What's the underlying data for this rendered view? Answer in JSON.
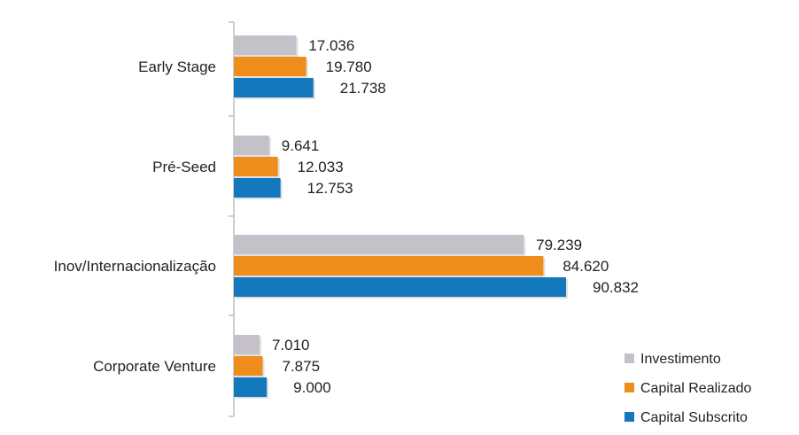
{
  "chart_data": {
    "type": "bar",
    "orientation": "horizontal",
    "title": "",
    "xlabel": "",
    "ylabel": "",
    "categories": [
      "Early Stage",
      "Pré-Seed",
      "Inov/Internacionalização",
      "Corporate Venture"
    ],
    "series": [
      {
        "name": "Investimento",
        "color": "#c4c1c9",
        "values": [
          17036,
          9641,
          79239,
          7010
        ],
        "labels": [
          "17.036",
          "9.641",
          "79.239",
          "7.010"
        ]
      },
      {
        "name": "Capital Realizado",
        "color": "#ef8d1d",
        "values": [
          19780,
          12033,
          84620,
          7875
        ],
        "labels": [
          "19.780",
          "12.033",
          "84.620",
          "7.875"
        ]
      },
      {
        "name": "Capital Subscrito",
        "color": "#1478bd",
        "values": [
          21738,
          12753,
          90832,
          9000
        ],
        "labels": [
          "21.738",
          "12.753",
          "90.832",
          "9.000"
        ]
      }
    ],
    "xlim": [
      0,
      100000
    ],
    "grid": false,
    "legend_position": "bottom-right",
    "axis_color": "#bdbdbd"
  }
}
